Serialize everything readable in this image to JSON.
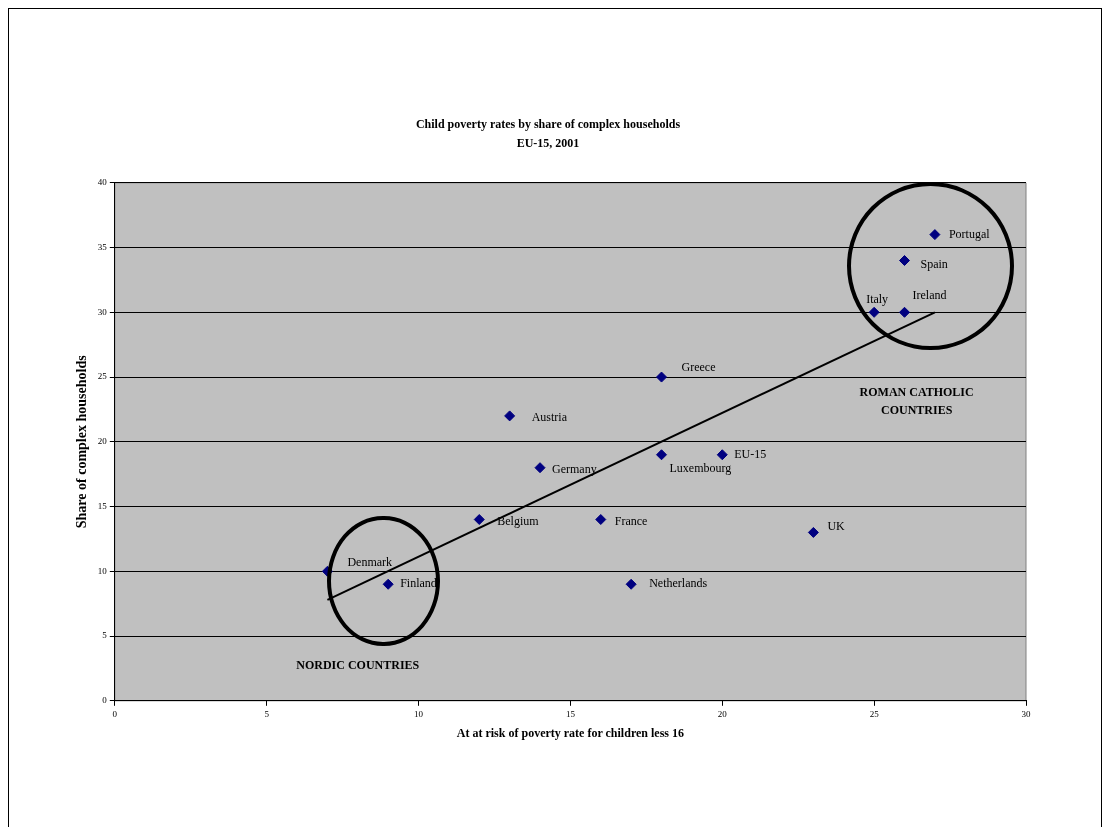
{
  "chart_data": {
    "type": "scatter",
    "title": "Child poverty rates by share of complex households",
    "subtitle": "EU-15, 2001",
    "xlabel": "At at risk of poverty rate for children less 16",
    "ylabel": "Share of complex households",
    "x": [
      7,
      9,
      12,
      13,
      14,
      16,
      17,
      18,
      18,
      20,
      23,
      25,
      26,
      26,
      27
    ],
    "series": [
      {
        "color": "#000080",
        "values": [
          10,
          9,
          14,
          22,
          18,
          14,
          9,
          25,
          19,
          19,
          13,
          30,
          30,
          34,
          36
        ]
      },
      {
        "type": "line",
        "color": "#000000",
        "x": [
          7,
          27
        ],
        "values": [
          7.8,
          30
        ],
        "marker": "none"
      }
    ],
    "xlim": [
      0,
      30
    ],
    "xticks": [
      0,
      5,
      10,
      15,
      20,
      25,
      30
    ],
    "ylim": [
      0,
      40
    ],
    "yticks": [
      0,
      5,
      10,
      15,
      20,
      25,
      30,
      35,
      40
    ],
    "grid": "y",
    "legend": false,
    "marker": "diamond",
    "annotations": [
      {
        "text": "Denmark",
        "x": 7,
        "y": 10
      },
      {
        "text": "Finland",
        "x": 9,
        "y": 9
      },
      {
        "text": "Belgium",
        "x": 12,
        "y": 14
      },
      {
        "text": "Austria",
        "x": 13,
        "y": 22
      },
      {
        "text": "Germany",
        "x": 14,
        "y": 18
      },
      {
        "text": "France",
        "x": 16,
        "y": 14
      },
      {
        "text": "Netherlands",
        "x": 17,
        "y": 9
      },
      {
        "text": "Greece",
        "x": 18,
        "y": 25
      },
      {
        "text": "Luxembourg",
        "x": 18,
        "y": 19
      },
      {
        "text": "EU-15",
        "x": 20,
        "y": 19
      },
      {
        "text": "UK",
        "x": 23,
        "y": 13
      },
      {
        "text": "Italy",
        "x": 25,
        "y": 30
      },
      {
        "text": "Ireland",
        "x": 26,
        "y": 30
      },
      {
        "text": "Spain",
        "x": 26,
        "y": 34
      },
      {
        "text": "Portugal",
        "x": 27,
        "y": 36
      },
      "NORDIC COUNTRIES",
      "ROMAN CATHOLIC COUNTRIES"
    ]
  }
}
